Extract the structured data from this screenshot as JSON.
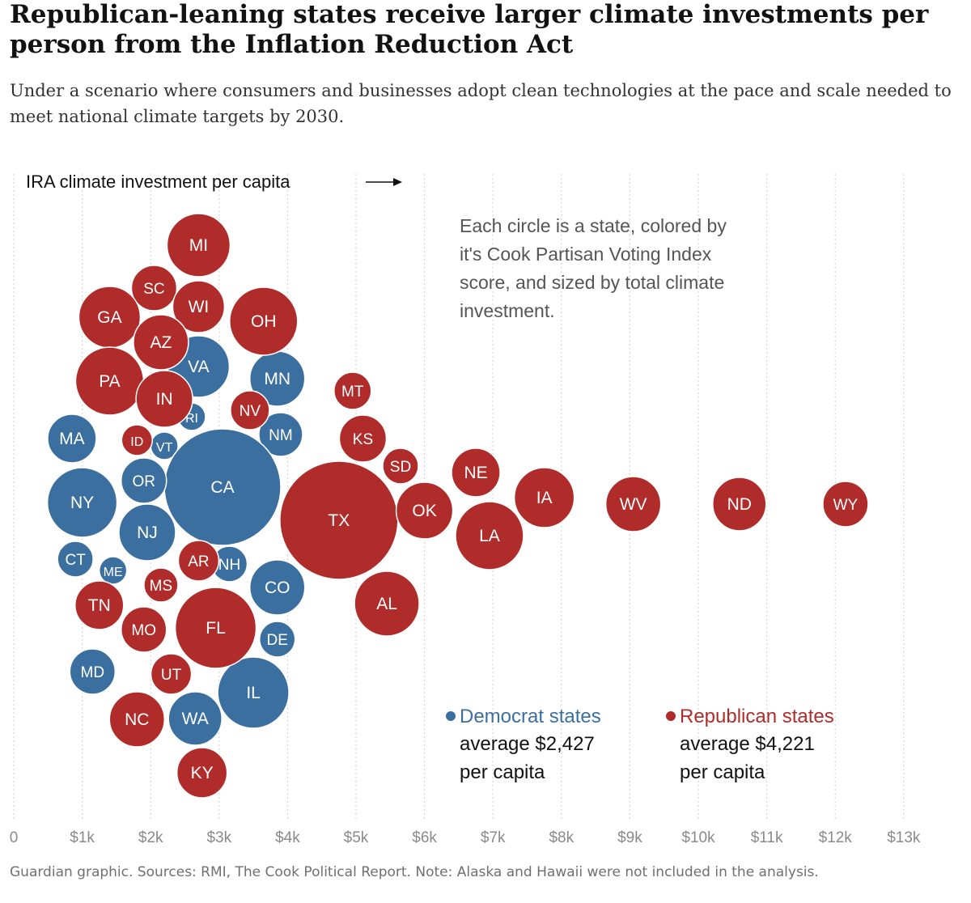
{
  "title": "Republican-leaning states receive larger climate investments per person from the Inflation Reduction Act",
  "subtitle": "Under a scenario where consumers and businesses adopt clean technologies at the pace and scale needed to meet national climate targets by 2030.",
  "footer": "Guardian graphic. Sources: RMI, The Cook Political Report. Note: Alaska and Hawaii were not included in the analysis.",
  "colors": {
    "democrat": "#3b6fa0",
    "republican": "#b02c2a",
    "label": "#ffffff",
    "grid": "#cfcfcf",
    "tick": "#8a8a8a"
  },
  "chart_data": {
    "type": "scatter",
    "title": "Republican-leaning states receive larger climate investments per person from the Inflation Reduction Act",
    "xlabel": "IRA climate investment per capita",
    "ylabel": "",
    "xlim": [
      0,
      13000
    ],
    "x_ticks": [
      "0",
      "$1k",
      "$2k",
      "$3k",
      "$4k",
      "$5k",
      "$6k",
      "$7k",
      "$8k",
      "$9k",
      "$10k",
      "$11k",
      "$12k",
      "$13k"
    ],
    "grid": true,
    "annotation": "Each circle is a state, colored by it's Cook Partisan Voting Index score, and sized by total climate investment.",
    "legend": [
      {
        "name": "Democrat states",
        "average_line": "average $2,427",
        "unit_line": "per capita",
        "party": "D"
      },
      {
        "name": "Republican states",
        "average_line": "average $4,221",
        "unit_line": "per capita",
        "party": "R"
      }
    ],
    "series": [
      {
        "name": "Democrat states",
        "points": [
          {
            "state": "VA",
            "x": 2700,
            "party": "D"
          },
          {
            "state": "MN",
            "x": 3850,
            "party": "D"
          },
          {
            "state": "RI",
            "x": 2600,
            "party": "D"
          },
          {
            "state": "NM",
            "x": 3900,
            "party": "D"
          },
          {
            "state": "MA",
            "x": 850,
            "party": "D"
          },
          {
            "state": "VT",
            "x": 2200,
            "party": "D"
          },
          {
            "state": "CA",
            "x": 3050,
            "party": "D"
          },
          {
            "state": "OR",
            "x": 1900,
            "party": "D"
          },
          {
            "state": "NY",
            "x": 1000,
            "party": "D"
          },
          {
            "state": "NJ",
            "x": 1950,
            "party": "D"
          },
          {
            "state": "CT",
            "x": 900,
            "party": "D"
          },
          {
            "state": "ME",
            "x": 1450,
            "party": "D"
          },
          {
            "state": "NH",
            "x": 3150,
            "party": "D"
          },
          {
            "state": "CO",
            "x": 3850,
            "party": "D"
          },
          {
            "state": "DE",
            "x": 3850,
            "party": "D"
          },
          {
            "state": "MD",
            "x": 1150,
            "party": "D"
          },
          {
            "state": "IL",
            "x": 3500,
            "party": "D"
          },
          {
            "state": "WA",
            "x": 2650,
            "party": "D"
          }
        ]
      },
      {
        "name": "Republican states",
        "points": [
          {
            "state": "MI",
            "x": 2700,
            "party": "R"
          },
          {
            "state": "SC",
            "x": 2050,
            "party": "R"
          },
          {
            "state": "WI",
            "x": 2700,
            "party": "R"
          },
          {
            "state": "GA",
            "x": 1400,
            "party": "R"
          },
          {
            "state": "OH",
            "x": 3650,
            "party": "R"
          },
          {
            "state": "AZ",
            "x": 2150,
            "party": "R"
          },
          {
            "state": "PA",
            "x": 1400,
            "party": "R"
          },
          {
            "state": "IN",
            "x": 2200,
            "party": "R"
          },
          {
            "state": "NV",
            "x": 3450,
            "party": "R"
          },
          {
            "state": "MT",
            "x": 4950,
            "party": "R"
          },
          {
            "state": "KS",
            "x": 5100,
            "party": "R"
          },
          {
            "state": "ID",
            "x": 1800,
            "party": "R"
          },
          {
            "state": "SD",
            "x": 5650,
            "party": "R"
          },
          {
            "state": "NE",
            "x": 6750,
            "party": "R"
          },
          {
            "state": "TX",
            "x": 4750,
            "party": "R"
          },
          {
            "state": "OK",
            "x": 6000,
            "party": "R"
          },
          {
            "state": "IA",
            "x": 7750,
            "party": "R"
          },
          {
            "state": "WV",
            "x": 9050,
            "party": "R"
          },
          {
            "state": "ND",
            "x": 10600,
            "party": "R"
          },
          {
            "state": "WY",
            "x": 12150,
            "party": "R"
          },
          {
            "state": "LA",
            "x": 6950,
            "party": "R"
          },
          {
            "state": "AR",
            "x": 2700,
            "party": "R"
          },
          {
            "state": "MS",
            "x": 2150,
            "party": "R"
          },
          {
            "state": "TN",
            "x": 1250,
            "party": "R"
          },
          {
            "state": "AL",
            "x": 5450,
            "party": "R"
          },
          {
            "state": "MO",
            "x": 1900,
            "party": "R"
          },
          {
            "state": "FL",
            "x": 2950,
            "party": "R"
          },
          {
            "state": "UT",
            "x": 2300,
            "party": "R"
          },
          {
            "state": "NC",
            "x": 1800,
            "party": "R"
          },
          {
            "state": "KY",
            "x": 2750,
            "party": "R"
          }
        ]
      }
    ]
  }
}
